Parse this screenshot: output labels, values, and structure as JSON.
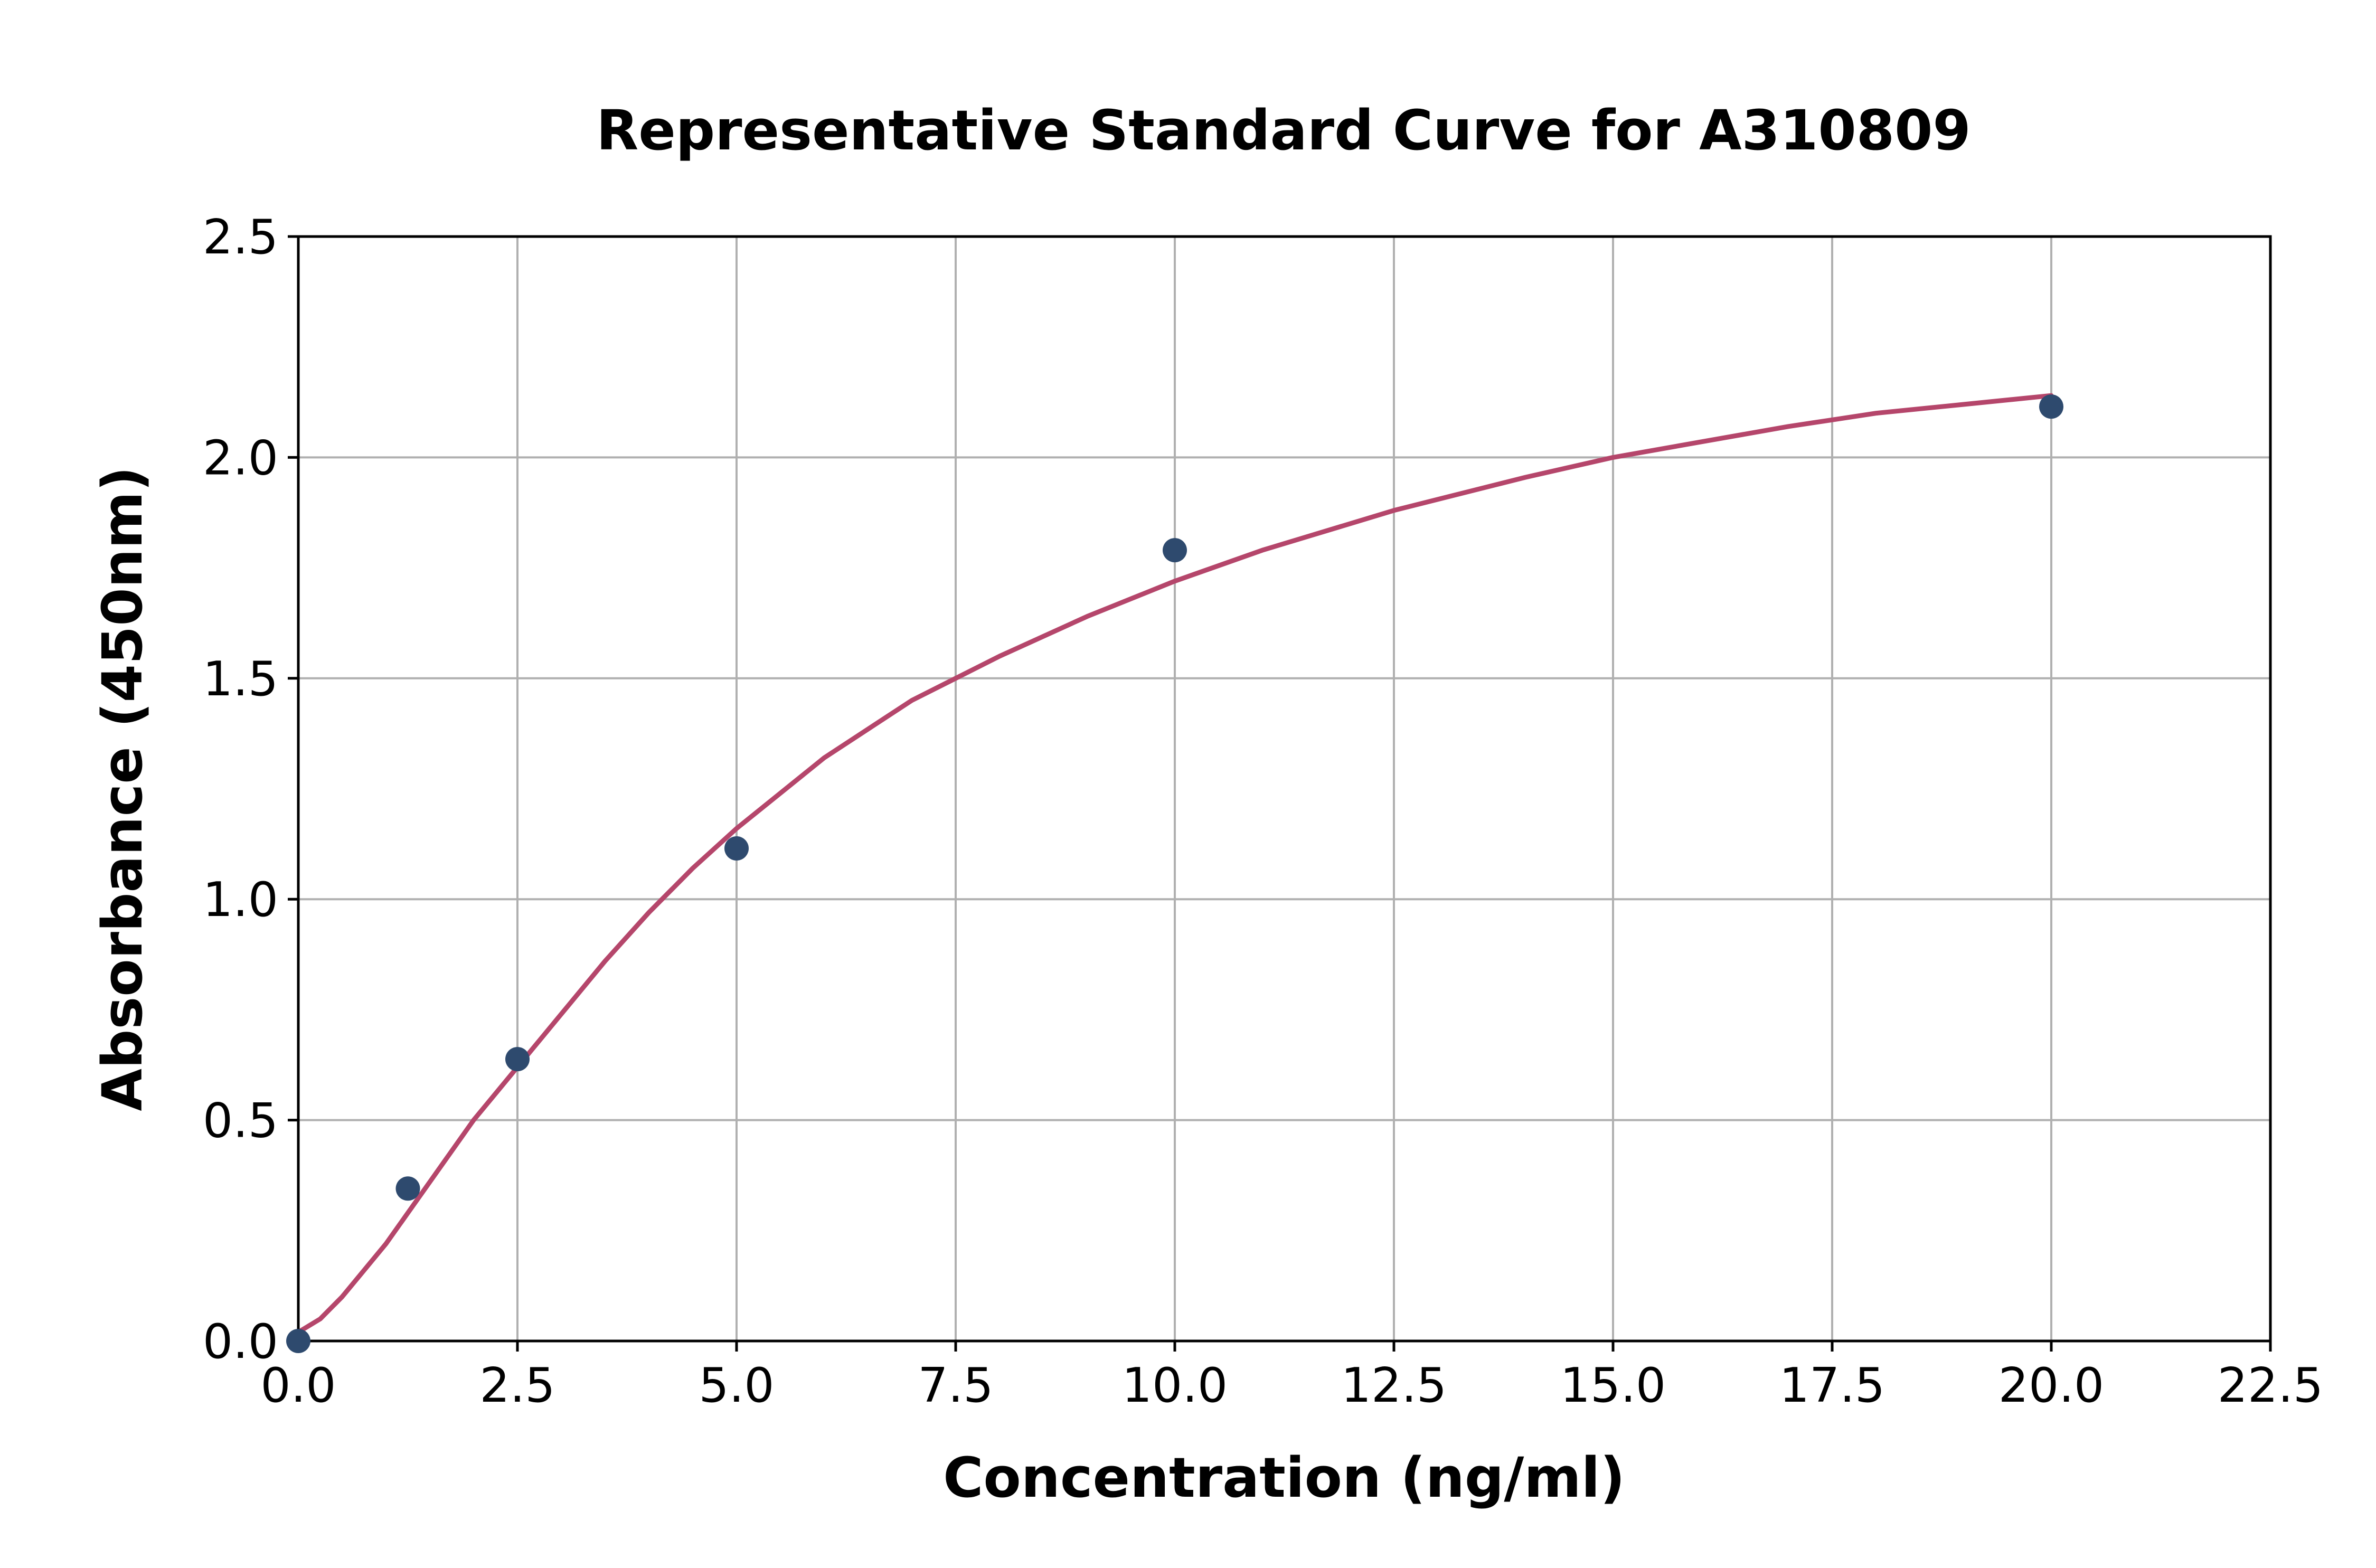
{
  "chart_data": {
    "type": "scatter",
    "title": "Representative Standard Curve for A310809",
    "xlabel": "Concentration (ng/ml)",
    "ylabel": "Absorbance (450nm)",
    "xlim": [
      0,
      22.5
    ],
    "ylim": [
      0,
      2.5
    ],
    "x_ticks": [
      "0.0",
      "2.5",
      "5.0",
      "7.5",
      "10.0",
      "12.5",
      "15.0",
      "17.5",
      "20.0",
      "22.5"
    ],
    "y_ticks": [
      "0.0",
      "0.5",
      "1.0",
      "1.5",
      "2.0",
      "2.5"
    ],
    "grid": true,
    "series": [
      {
        "kind": "points",
        "color": "#2e4a6e",
        "x": [
          0,
          1.25,
          2.5,
          5,
          10,
          20
        ],
        "y": [
          0.0,
          0.345,
          0.638,
          1.115,
          1.79,
          2.115
        ]
      },
      {
        "kind": "fit-curve",
        "color": "#b5466b",
        "x": [
          0,
          0.25,
          0.5,
          1.0,
          1.5,
          2.0,
          2.5,
          3.0,
          3.5,
          4.0,
          4.5,
          5.0,
          6.0,
          7.0,
          7.5,
          8.0,
          9.0,
          10.0,
          11.0,
          12.0,
          12.5,
          13.0,
          14.0,
          15.0,
          16.0,
          17.0,
          17.5,
          18.0,
          19.0,
          20.0
        ],
        "y": [
          0.02,
          0.05,
          0.1,
          0.22,
          0.36,
          0.5,
          0.62,
          0.74,
          0.86,
          0.97,
          1.07,
          1.16,
          1.32,
          1.45,
          1.5,
          1.55,
          1.64,
          1.72,
          1.79,
          1.85,
          1.88,
          1.905,
          1.955,
          2.0,
          2.035,
          2.07,
          2.085,
          2.1,
          2.12,
          2.14
        ]
      }
    ]
  }
}
